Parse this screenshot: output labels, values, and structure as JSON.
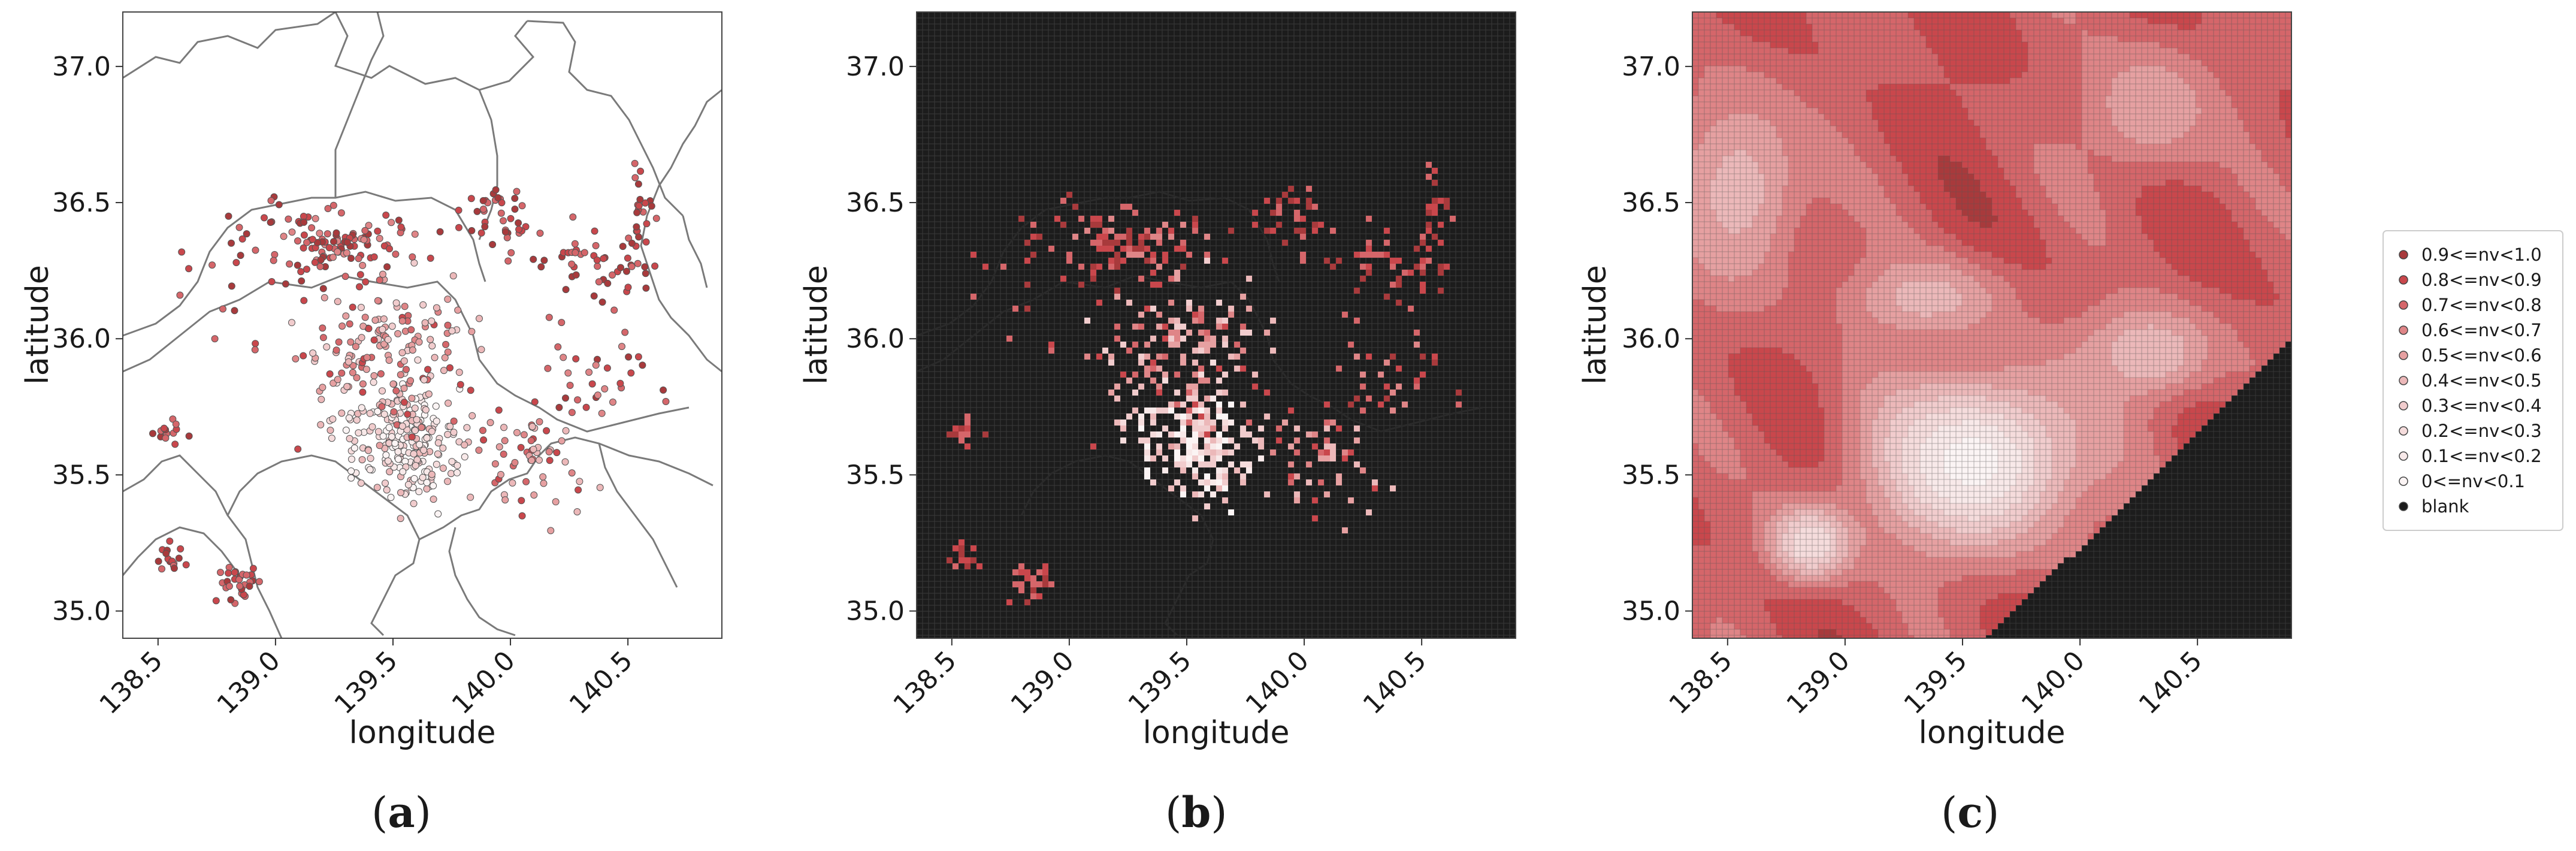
{
  "chart_data": [
    {
      "type": "scatter",
      "panel": "a",
      "caption_open": "(",
      "caption_letter": "a",
      "caption_close": ")",
      "xlabel": "longitude",
      "ylabel": "latitude",
      "xlim": [
        138.35,
        140.9
      ],
      "ylim": [
        34.9,
        37.2
      ],
      "xticks": [
        "138.5",
        "139.0",
        "139.5",
        "140.0",
        "140.5"
      ],
      "yticks": [
        "35.0",
        "35.5",
        "36.0",
        "36.5",
        "37.0"
      ],
      "background": "#ffffff",
      "clusters": [
        {
          "lon": 139.55,
          "lat": 35.62,
          "spread": [
            0.22,
            0.18
          ],
          "count": 230,
          "nv_range": [
            0.0,
            0.5
          ]
        },
        {
          "lon": 139.45,
          "lat": 35.95,
          "spread": [
            0.3,
            0.25
          ],
          "count": 160,
          "nv_range": [
            0.3,
            0.9
          ]
        },
        {
          "lon": 139.3,
          "lat": 36.35,
          "spread": [
            0.28,
            0.1
          ],
          "count": 90,
          "nv_range": [
            0.6,
            1.0
          ]
        },
        {
          "lon": 139.95,
          "lat": 36.45,
          "spread": [
            0.12,
            0.1
          ],
          "count": 35,
          "nv_range": [
            0.7,
            1.0
          ]
        },
        {
          "lon": 140.35,
          "lat": 36.25,
          "spread": [
            0.2,
            0.15
          ],
          "count": 50,
          "nv_range": [
            0.7,
            1.0
          ]
        },
        {
          "lon": 140.55,
          "lat": 36.45,
          "spread": [
            0.05,
            0.18
          ],
          "count": 25,
          "nv_range": [
            0.7,
            1.0
          ]
        },
        {
          "lon": 140.1,
          "lat": 35.55,
          "spread": [
            0.18,
            0.15
          ],
          "count": 60,
          "nv_range": [
            0.4,
            0.9
          ]
        },
        {
          "lon": 138.85,
          "lat": 35.1,
          "spread": [
            0.08,
            0.06
          ],
          "count": 30,
          "nv_range": [
            0.7,
            1.0
          ]
        },
        {
          "lon": 138.55,
          "lat": 35.2,
          "spread": [
            0.05,
            0.05
          ],
          "count": 15,
          "nv_range": [
            0.7,
            1.0
          ]
        },
        {
          "lon": 138.55,
          "lat": 35.65,
          "spread": [
            0.1,
            0.05
          ],
          "count": 14,
          "nv_range": [
            0.7,
            1.0
          ]
        },
        {
          "lon": 138.95,
          "lat": 36.3,
          "spread": [
            0.25,
            0.25
          ],
          "count": 40,
          "nv_range": [
            0.7,
            1.0
          ]
        },
        {
          "lon": 140.35,
          "lat": 35.85,
          "spread": [
            0.2,
            0.12
          ],
          "count": 30,
          "nv_range": [
            0.6,
            1.0
          ]
        }
      ]
    },
    {
      "type": "scatter",
      "panel": "b",
      "caption_open": "(",
      "caption_letter": "b",
      "caption_close": ")",
      "xlabel": "longitude",
      "ylabel": "latitude",
      "xlim": [
        138.35,
        140.9
      ],
      "ylim": [
        34.9,
        37.2
      ],
      "xticks": [
        "138.5",
        "139.0",
        "139.5",
        "140.0",
        "140.5"
      ],
      "yticks": [
        "35.0",
        "35.5",
        "36.0",
        "36.5",
        "37.0"
      ],
      "background": "#1c1c1c",
      "grid": true,
      "clusters": [
        {
          "lon": 139.55,
          "lat": 35.62,
          "spread": [
            0.22,
            0.18
          ],
          "count": 230,
          "nv_range": [
            0.0,
            0.5
          ]
        },
        {
          "lon": 139.45,
          "lat": 35.95,
          "spread": [
            0.3,
            0.25
          ],
          "count": 160,
          "nv_range": [
            0.3,
            0.9
          ]
        },
        {
          "lon": 139.3,
          "lat": 36.35,
          "spread": [
            0.28,
            0.1
          ],
          "count": 90,
          "nv_range": [
            0.6,
            1.0
          ]
        },
        {
          "lon": 139.95,
          "lat": 36.45,
          "spread": [
            0.12,
            0.1
          ],
          "count": 35,
          "nv_range": [
            0.7,
            1.0
          ]
        },
        {
          "lon": 140.35,
          "lat": 36.25,
          "spread": [
            0.2,
            0.15
          ],
          "count": 50,
          "nv_range": [
            0.7,
            1.0
          ]
        },
        {
          "lon": 140.55,
          "lat": 36.45,
          "spread": [
            0.05,
            0.18
          ],
          "count": 25,
          "nv_range": [
            0.7,
            1.0
          ]
        },
        {
          "lon": 140.1,
          "lat": 35.55,
          "spread": [
            0.18,
            0.15
          ],
          "count": 60,
          "nv_range": [
            0.4,
            0.9
          ]
        },
        {
          "lon": 138.85,
          "lat": 35.1,
          "spread": [
            0.08,
            0.06
          ],
          "count": 30,
          "nv_range": [
            0.7,
            1.0
          ]
        },
        {
          "lon": 138.55,
          "lat": 35.2,
          "spread": [
            0.05,
            0.05
          ],
          "count": 15,
          "nv_range": [
            0.7,
            1.0
          ]
        },
        {
          "lon": 138.55,
          "lat": 35.65,
          "spread": [
            0.1,
            0.05
          ],
          "count": 14,
          "nv_range": [
            0.7,
            1.0
          ]
        },
        {
          "lon": 138.95,
          "lat": 36.3,
          "spread": [
            0.25,
            0.25
          ],
          "count": 40,
          "nv_range": [
            0.7,
            1.0
          ]
        },
        {
          "lon": 140.35,
          "lat": 35.85,
          "spread": [
            0.2,
            0.12
          ],
          "count": 30,
          "nv_range": [
            0.6,
            1.0
          ]
        }
      ]
    },
    {
      "type": "heatmap",
      "panel": "c",
      "caption_open": "(",
      "caption_letter": "c",
      "caption_close": ")",
      "xlabel": "longitude",
      "ylabel": "latitude",
      "xlim": [
        138.35,
        140.9
      ],
      "ylim": [
        34.9,
        37.2
      ],
      "xticks": [
        "138.5",
        "139.0",
        "139.5",
        "140.0",
        "140.5"
      ],
      "yticks": [
        "35.0",
        "35.5",
        "36.0",
        "36.5",
        "37.0"
      ],
      "grid": true,
      "base_nv": 0.8,
      "low_nv_zones": [
        {
          "lon": 139.55,
          "lat": 35.55,
          "radius": [
            0.45,
            0.32
          ],
          "nv": 0.05
        },
        {
          "lon": 138.85,
          "lat": 35.25,
          "radius": [
            0.18,
            0.14
          ],
          "nv": 0.2
        },
        {
          "lon": 139.35,
          "lat": 36.15,
          "radius": [
            0.35,
            0.15
          ],
          "nv": 0.45
        },
        {
          "lon": 140.3,
          "lat": 35.95,
          "radius": [
            0.3,
            0.18
          ],
          "nv": 0.4
        },
        {
          "lon": 138.55,
          "lat": 36.55,
          "radius": [
            0.3,
            0.4
          ],
          "nv": 0.45
        },
        {
          "lon": 140.3,
          "lat": 36.85,
          "radius": [
            0.3,
            0.25
          ],
          "nv": 0.5
        }
      ],
      "blank_region_boundary": [
        [
          139.6,
          34.9
        ],
        [
          140.2,
          35.4
        ],
        [
          140.6,
          35.75
        ],
        [
          140.9,
          36.0
        ]
      ]
    }
  ],
  "legend": {
    "placement": "right",
    "entries": [
      {
        "label": "0.9<=nv<1.0",
        "color": "#a83a3c"
      },
      {
        "label": "0.8<=nv<0.9",
        "color": "#c9474c"
      },
      {
        "label": "0.7<=nv<0.8",
        "color": "#d5666a"
      },
      {
        "label": "0.6<=nv<0.7",
        "color": "#df8587"
      },
      {
        "label": "0.5<=nv<0.6",
        "color": "#e6a0a1"
      },
      {
        "label": "0.4<=nv<0.5",
        "color": "#ecb8b9"
      },
      {
        "label": "0.3<=nv<0.4",
        "color": "#f1cccd"
      },
      {
        "label": "0.2<=nv<0.3",
        "color": "#f5dcdc"
      },
      {
        "label": "0.1<=nv<0.2",
        "color": "#f8e9e9"
      },
      {
        "label": "0<=nv<0.1",
        "color": "#fbf4f4"
      },
      {
        "label": "blank",
        "color": "#1c1c1c"
      }
    ]
  },
  "colors": {
    "boundary_line": "#7a7a7a",
    "dark_background": "#1c1c1c",
    "grid_dark": "#3a3a3a",
    "grid_light": "#555555",
    "marker_edge": "#555555"
  }
}
